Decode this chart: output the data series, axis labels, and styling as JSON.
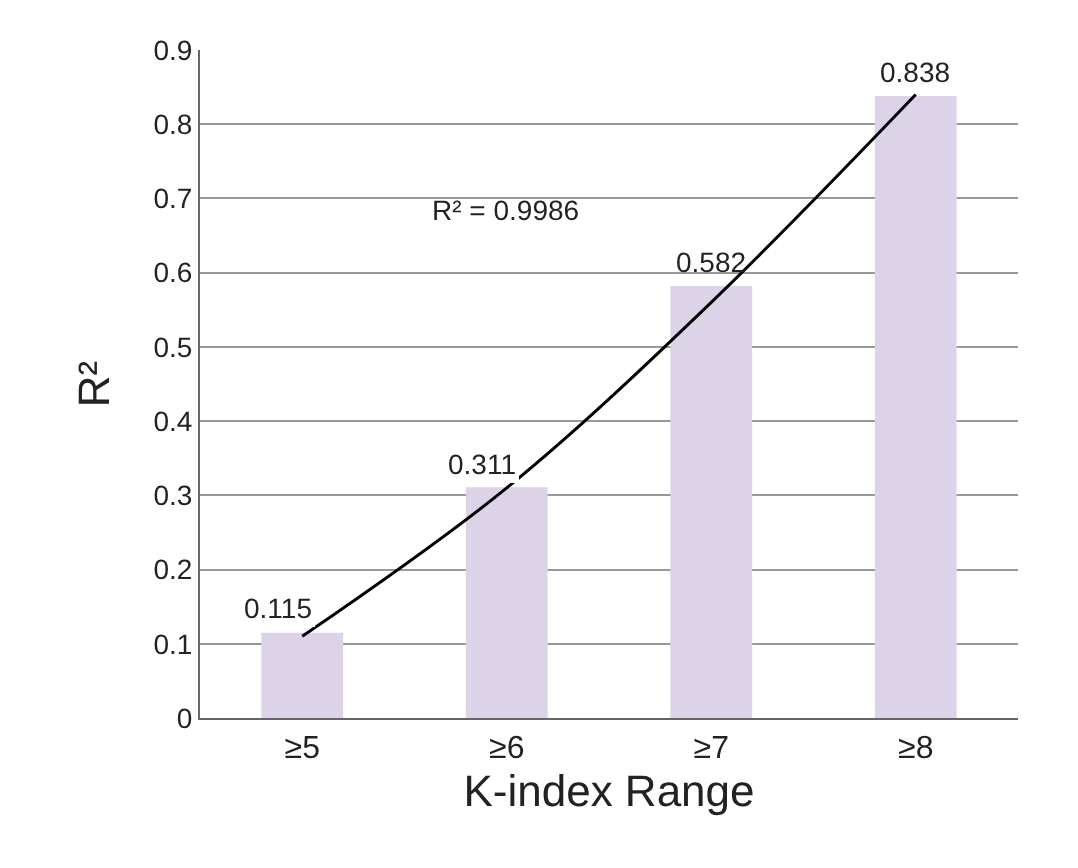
{
  "chart_data": {
    "type": "bar",
    "xlabel": "K-index Range",
    "ylabel": "R²",
    "categories": [
      "≥5",
      "≥6",
      "≥7",
      "≥8"
    ],
    "series": [
      {
        "color": "#dcd3e8",
        "values": [
          0.115,
          0.311,
          0.582,
          0.838
        ],
        "value_labels": [
          "0.115",
          "0.311",
          "0.582",
          "0.838"
        ]
      },
      {
        "type": "line",
        "color": "#000000",
        "x": [
          "≥5",
          "≥6",
          "≥7",
          "≥8"
        ],
        "values": [
          0.11,
          0.31,
          0.56,
          0.84
        ]
      }
    ],
    "annotations": [
      "R² = 0.9986"
    ],
    "ylim": [
      0,
      0.9
    ],
    "yticks": [
      0,
      0.1,
      0.2,
      0.3,
      0.4,
      0.5,
      0.6,
      0.7,
      0.8,
      0.9
    ],
    "grid": "y",
    "line_style": "solid",
    "marker": "none"
  }
}
